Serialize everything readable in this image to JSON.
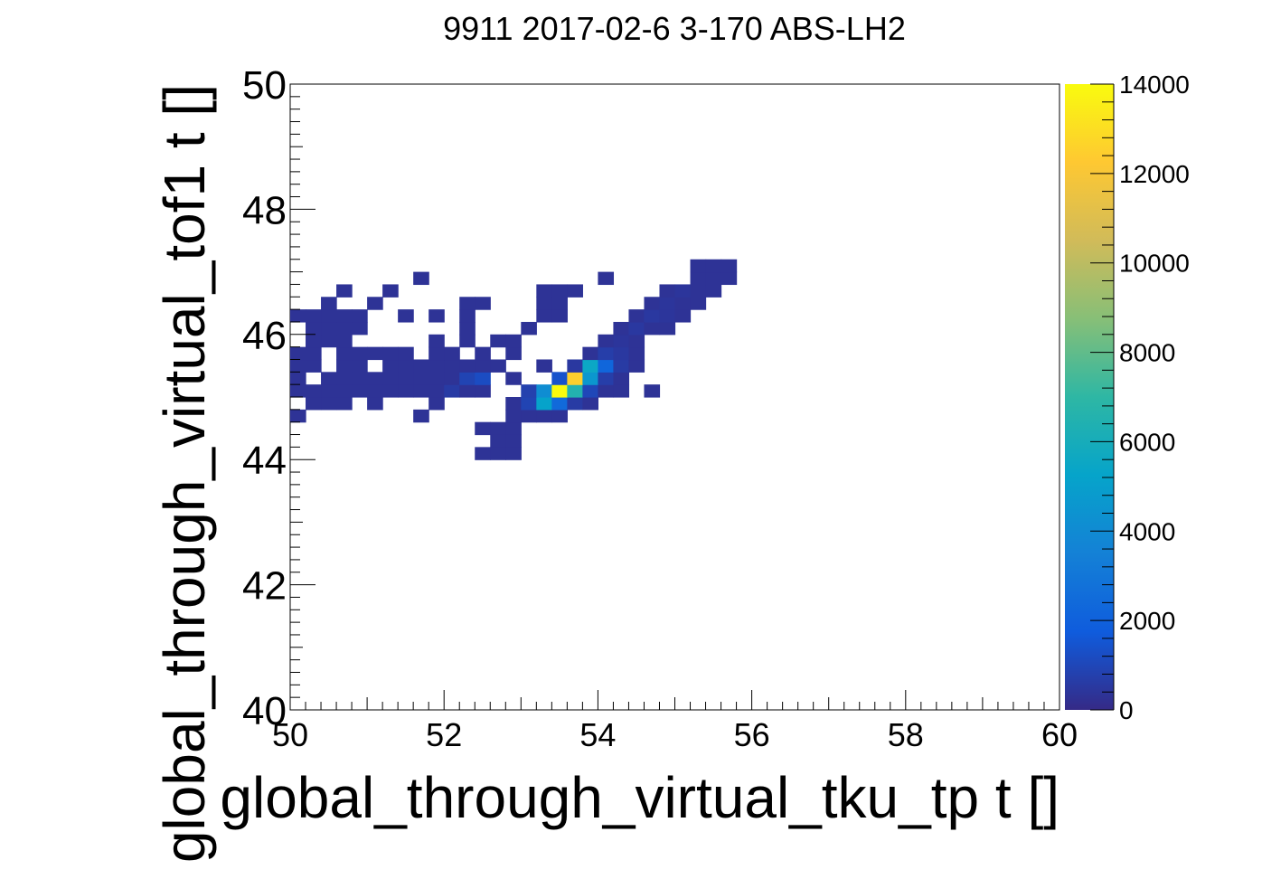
{
  "chart_data": {
    "type": "heatmap",
    "title": "9911 2017-02-6 3-170 ABS-LH2",
    "xlabel": "global_through_virtual_tku_tp t []",
    "ylabel": "global_through_virtual_tof1 t []",
    "xlim": [
      50,
      60
    ],
    "ylim": [
      40,
      50
    ],
    "x_ticks": [
      "50",
      "52",
      "54",
      "56",
      "58",
      "60"
    ],
    "y_ticks": [
      "40",
      "42",
      "44",
      "46",
      "48",
      "50"
    ],
    "bin_size": 0.2,
    "colorbar": {
      "range": [
        0,
        14000
      ],
      "ticks": [
        "0",
        "2000",
        "4000",
        "6000",
        "8000",
        "10000",
        "12000",
        "14000"
      ],
      "colors": [
        "#352a87",
        "#0f5cdd",
        "#1481d6",
        "#06a4ca",
        "#2eb7a4",
        "#87bf77",
        "#d1bb59",
        "#fec832",
        "#f9fb0e"
      ]
    },
    "grid": false,
    "cells": [
      [
        50.0,
        44.6,
        300
      ],
      [
        50.2,
        44.8,
        300
      ],
      [
        50.4,
        44.8,
        300
      ],
      [
        50.6,
        44.8,
        300
      ],
      [
        51.0,
        44.8,
        300
      ],
      [
        51.6,
        44.6,
        300
      ],
      [
        51.8,
        44.8,
        300
      ],
      [
        52.4,
        44.4,
        300
      ],
      [
        52.6,
        44.4,
        300
      ],
      [
        52.8,
        44.4,
        300
      ],
      [
        52.6,
        44.2,
        300
      ],
      [
        52.8,
        44.2,
        300
      ],
      [
        52.4,
        44.0,
        300
      ],
      [
        52.6,
        44.0,
        300
      ],
      [
        52.8,
        44.0,
        300
      ],
      [
        52.8,
        44.6,
        300
      ],
      [
        53.0,
        44.6,
        300
      ],
      [
        53.2,
        44.6,
        300
      ],
      [
        53.4,
        44.6,
        300
      ],
      [
        50.0,
        45.0,
        300
      ],
      [
        50.2,
        45.0,
        300
      ],
      [
        50.4,
        45.0,
        300
      ],
      [
        50.6,
        45.0,
        300
      ],
      [
        50.8,
        45.0,
        300
      ],
      [
        51.0,
        45.0,
        300
      ],
      [
        51.2,
        45.0,
        300
      ],
      [
        51.4,
        45.0,
        300
      ],
      [
        51.6,
        45.0,
        300
      ],
      [
        51.8,
        45.0,
        300
      ],
      [
        52.0,
        45.0,
        600
      ],
      [
        52.2,
        45.0,
        300
      ],
      [
        52.4,
        45.0,
        300
      ],
      [
        52.8,
        44.8,
        300
      ],
      [
        53.0,
        44.8,
        900
      ],
      [
        53.2,
        44.8,
        5200
      ],
      [
        53.4,
        44.8,
        2400
      ],
      [
        53.6,
        44.8,
        600
      ],
      [
        53.8,
        44.8,
        300
      ],
      [
        53.0,
        45.0,
        800
      ],
      [
        53.2,
        45.0,
        4100
      ],
      [
        53.4,
        45.0,
        14000
      ],
      [
        53.6,
        45.0,
        6500
      ],
      [
        53.8,
        45.0,
        1000
      ],
      [
        54.0,
        45.0,
        300
      ],
      [
        54.2,
        45.0,
        300
      ],
      [
        54.6,
        45.0,
        300
      ],
      [
        50.0,
        45.2,
        300
      ],
      [
        50.4,
        45.2,
        300
      ],
      [
        50.6,
        45.2,
        300
      ],
      [
        50.8,
        45.2,
        300
      ],
      [
        51.0,
        45.2,
        300
      ],
      [
        51.2,
        45.2,
        300
      ],
      [
        51.4,
        45.2,
        300
      ],
      [
        51.6,
        45.2,
        300
      ],
      [
        51.8,
        45.2,
        300
      ],
      [
        52.0,
        45.2,
        300
      ],
      [
        52.2,
        45.2,
        900
      ],
      [
        52.4,
        45.2,
        1200
      ],
      [
        52.8,
        45.2,
        300
      ],
      [
        53.4,
        45.2,
        1400
      ],
      [
        53.6,
        45.2,
        12500
      ],
      [
        53.8,
        45.2,
        4600
      ],
      [
        54.0,
        45.2,
        700
      ],
      [
        54.2,
        45.2,
        300
      ],
      [
        50.0,
        45.4,
        300
      ],
      [
        50.2,
        45.4,
        300
      ],
      [
        50.6,
        45.4,
        300
      ],
      [
        50.8,
        45.4,
        300
      ],
      [
        51.2,
        45.4,
        300
      ],
      [
        51.4,
        45.4,
        300
      ],
      [
        51.6,
        45.4,
        300
      ],
      [
        51.8,
        45.4,
        300
      ],
      [
        52.0,
        45.4,
        300
      ],
      [
        52.2,
        45.4,
        300
      ],
      [
        52.4,
        45.4,
        300
      ],
      [
        52.6,
        45.4,
        300
      ],
      [
        53.2,
        45.4,
        300
      ],
      [
        53.6,
        45.4,
        500
      ],
      [
        53.8,
        45.4,
        5500
      ],
      [
        54.0,
        45.4,
        2200
      ],
      [
        54.2,
        45.4,
        600
      ],
      [
        54.4,
        45.4,
        300
      ],
      [
        50.0,
        45.6,
        300
      ],
      [
        50.2,
        45.6,
        300
      ],
      [
        50.6,
        45.6,
        300
      ],
      [
        50.8,
        45.6,
        300
      ],
      [
        51.0,
        45.6,
        300
      ],
      [
        51.2,
        45.6,
        300
      ],
      [
        51.4,
        45.6,
        300
      ],
      [
        51.8,
        45.6,
        300
      ],
      [
        52.0,
        45.6,
        300
      ],
      [
        52.4,
        45.6,
        300
      ],
      [
        52.8,
        45.6,
        300
      ],
      [
        53.8,
        45.6,
        300
      ],
      [
        54.0,
        45.6,
        700
      ],
      [
        54.2,
        45.6,
        500
      ],
      [
        54.4,
        45.6,
        300
      ],
      [
        50.2,
        45.8,
        300
      ],
      [
        50.4,
        45.8,
        300
      ],
      [
        50.6,
        45.8,
        300
      ],
      [
        51.8,
        45.8,
        300
      ],
      [
        52.2,
        45.8,
        300
      ],
      [
        52.6,
        45.8,
        300
      ],
      [
        52.8,
        45.8,
        300
      ],
      [
        54.0,
        45.8,
        300
      ],
      [
        54.2,
        45.8,
        400
      ],
      [
        54.4,
        45.8,
        300
      ],
      [
        50.2,
        46.0,
        300
      ],
      [
        50.4,
        46.0,
        300
      ],
      [
        50.6,
        46.0,
        300
      ],
      [
        50.8,
        46.0,
        300
      ],
      [
        52.2,
        46.0,
        300
      ],
      [
        53.0,
        46.0,
        300
      ],
      [
        54.2,
        46.0,
        300
      ],
      [
        54.4,
        46.0,
        500
      ],
      [
        54.6,
        46.0,
        300
      ],
      [
        54.8,
        46.0,
        300
      ],
      [
        50.0,
        46.2,
        300
      ],
      [
        50.2,
        46.2,
        300
      ],
      [
        50.4,
        46.2,
        300
      ],
      [
        50.6,
        46.2,
        300
      ],
      [
        50.8,
        46.2,
        300
      ],
      [
        51.4,
        46.2,
        300
      ],
      [
        51.8,
        46.2,
        300
      ],
      [
        52.2,
        46.2,
        300
      ],
      [
        53.2,
        46.2,
        300
      ],
      [
        53.4,
        46.2,
        300
      ],
      [
        54.4,
        46.2,
        300
      ],
      [
        54.6,
        46.2,
        500
      ],
      [
        54.8,
        46.2,
        400
      ],
      [
        55.0,
        46.2,
        300
      ],
      [
        50.4,
        46.4,
        300
      ],
      [
        51.0,
        46.4,
        300
      ],
      [
        52.2,
        46.4,
        300
      ],
      [
        52.4,
        46.4,
        300
      ],
      [
        53.2,
        46.4,
        300
      ],
      [
        53.4,
        46.4,
        300
      ],
      [
        54.6,
        46.4,
        300
      ],
      [
        54.8,
        46.4,
        400
      ],
      [
        55.0,
        46.4,
        300
      ],
      [
        55.2,
        46.4,
        300
      ],
      [
        50.6,
        46.6,
        300
      ],
      [
        51.2,
        46.6,
        300
      ],
      [
        53.2,
        46.6,
        300
      ],
      [
        53.4,
        46.6,
        300
      ],
      [
        53.6,
        46.6,
        300
      ],
      [
        54.8,
        46.6,
        300
      ],
      [
        55.0,
        46.6,
        400
      ],
      [
        55.2,
        46.6,
        300
      ],
      [
        55.4,
        46.6,
        300
      ],
      [
        51.6,
        46.8,
        300
      ],
      [
        54.0,
        46.8,
        300
      ],
      [
        55.2,
        46.8,
        300
      ],
      [
        55.4,
        46.8,
        300
      ],
      [
        55.6,
        46.8,
        300
      ],
      [
        55.2,
        47.0,
        300
      ],
      [
        55.4,
        47.0,
        300
      ],
      [
        55.6,
        47.0,
        300
      ]
    ]
  }
}
